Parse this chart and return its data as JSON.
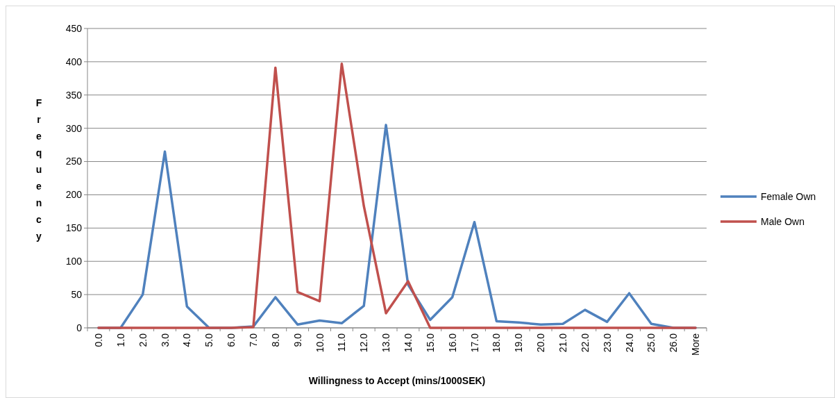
{
  "chart_data": {
    "type": "line",
    "xlabel": "Willingness to Accept (mins/1000SEK)",
    "ylabel": "Frequency",
    "categories": [
      "0.0",
      "1.0",
      "2.0",
      "3.0",
      "4.0",
      "5.0",
      "6.0",
      "7.0",
      "8.0",
      "9.0",
      "10.0",
      "11.0",
      "12.0",
      "13.0",
      "14.0",
      "15.0",
      "16.0",
      "17.0",
      "18.0",
      "19.0",
      "20.0",
      "21.0",
      "22.0",
      "23.0",
      "24.0",
      "25.0",
      "26.0",
      "More"
    ],
    "series": [
      {
        "name": "Female Own",
        "color": "#4f81bd",
        "values": [
          0,
          0,
          50,
          265,
          32,
          0,
          0,
          2,
          46,
          5,
          11,
          7,
          33,
          305,
          65,
          12,
          46,
          159,
          10,
          8,
          5,
          6,
          27,
          9,
          52,
          6,
          0,
          0
        ]
      },
      {
        "name": "Male Own",
        "color": "#c0504d",
        "values": [
          0,
          0,
          0,
          0,
          0,
          0,
          0,
          1,
          391,
          54,
          40,
          397,
          183,
          22,
          70,
          0,
          0,
          0,
          0,
          0,
          0,
          0,
          0,
          0,
          0,
          0,
          0,
          0
        ]
      }
    ],
    "ylim": [
      0,
      450
    ],
    "yticks": [
      0,
      50,
      100,
      150,
      200,
      250,
      300,
      350,
      400,
      450
    ],
    "grid": "y",
    "legend": "right",
    "marker": "none",
    "line_style": "solid"
  }
}
